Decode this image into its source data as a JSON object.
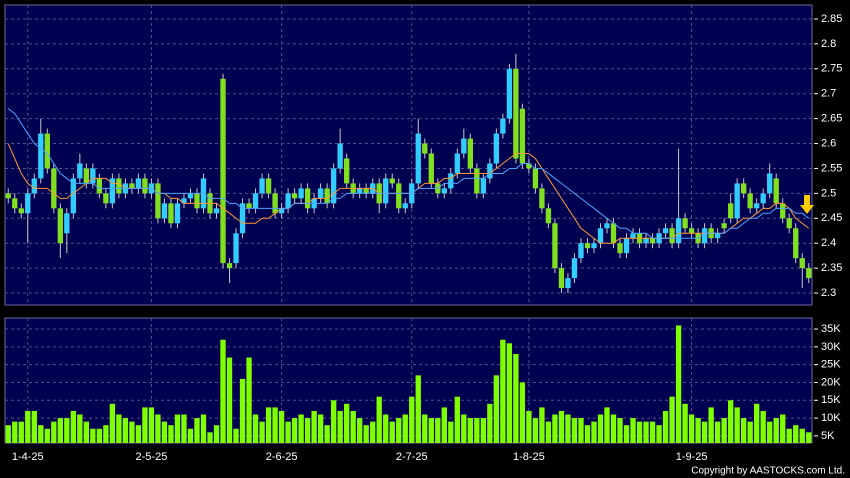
{
  "chart_data": {
    "type": "candlestick",
    "categories": [
      null,
      null,
      null,
      "1-4-25",
      null,
      null,
      null,
      null,
      null,
      null,
      null,
      null,
      null,
      null,
      null,
      null,
      null,
      null,
      null,
      null,
      null,
      null,
      "2-5-25",
      null,
      null,
      null,
      null,
      null,
      null,
      null,
      null,
      null,
      null,
      null,
      null,
      null,
      null,
      null,
      null,
      null,
      null,
      null,
      "2-6-25",
      null,
      null,
      null,
      null,
      null,
      null,
      null,
      null,
      null,
      null,
      null,
      null,
      null,
      null,
      null,
      null,
      null,
      null,
      null,
      "2-7-25",
      null,
      null,
      null,
      null,
      null,
      null,
      null,
      null,
      null,
      null,
      null,
      null,
      null,
      null,
      null,
      null,
      null,
      "1-8-25",
      null,
      null,
      null,
      null,
      null,
      null,
      null,
      null,
      null,
      null,
      null,
      null,
      null,
      null,
      null,
      null,
      null,
      null,
      null,
      null,
      null,
      null,
      null,
      null,
      "1-9-25",
      null,
      null,
      null,
      null,
      null,
      null,
      null,
      null,
      null,
      null,
      null,
      null,
      null,
      null,
      null,
      null,
      null,
      null
    ],
    "ohlc": [
      [
        2.5,
        2.51,
        2.48,
        2.49
      ],
      [
        2.49,
        2.5,
        2.46,
        2.47
      ],
      [
        2.47,
        2.48,
        2.45,
        2.46
      ],
      [
        2.46,
        2.51,
        2.4,
        2.5
      ],
      [
        2.5,
        2.54,
        2.49,
        2.53
      ],
      [
        2.53,
        2.65,
        2.52,
        2.62
      ],
      [
        2.62,
        2.63,
        2.54,
        2.55
      ],
      [
        2.55,
        2.56,
        2.46,
        2.47
      ],
      [
        2.47,
        2.48,
        2.37,
        2.4
      ],
      [
        2.42,
        2.47,
        2.38,
        2.46
      ],
      [
        2.46,
        2.54,
        2.45,
        2.53
      ],
      [
        2.53,
        2.58,
        2.52,
        2.56
      ],
      [
        2.55,
        2.56,
        2.51,
        2.52
      ],
      [
        2.52,
        2.56,
        2.51,
        2.55
      ],
      [
        2.53,
        2.54,
        2.49,
        2.5
      ],
      [
        2.5,
        2.51,
        2.47,
        2.48
      ],
      [
        2.48,
        2.54,
        2.47,
        2.53
      ],
      [
        2.53,
        2.54,
        2.49,
        2.5
      ],
      [
        2.5,
        2.53,
        2.49,
        2.52
      ],
      [
        2.52,
        2.53,
        2.5,
        2.51
      ],
      [
        2.51,
        2.54,
        2.5,
        2.53
      ],
      [
        2.53,
        2.54,
        2.49,
        2.5
      ],
      [
        2.5,
        2.53,
        2.49,
        2.52
      ],
      [
        2.52,
        2.53,
        2.44,
        2.45
      ],
      [
        2.45,
        2.49,
        2.44,
        2.48
      ],
      [
        2.48,
        2.49,
        2.43,
        2.44
      ],
      [
        2.44,
        2.49,
        2.43,
        2.48
      ],
      [
        2.48,
        2.5,
        2.47,
        2.49
      ],
      [
        2.49,
        2.51,
        2.48,
        2.5
      ],
      [
        2.5,
        2.51,
        2.46,
        2.47
      ],
      [
        2.47,
        2.54,
        2.46,
        2.53
      ],
      [
        2.5,
        2.51,
        2.45,
        2.46
      ],
      [
        2.46,
        2.48,
        2.45,
        2.47
      ],
      [
        2.73,
        2.74,
        2.35,
        2.36
      ],
      [
        2.36,
        2.37,
        2.32,
        2.35
      ],
      [
        2.36,
        2.43,
        2.35,
        2.42
      ],
      [
        2.42,
        2.49,
        2.41,
        2.48
      ],
      [
        2.48,
        2.49,
        2.46,
        2.47
      ],
      [
        2.47,
        2.51,
        2.46,
        2.5
      ],
      [
        2.5,
        2.54,
        2.49,
        2.53
      ],
      [
        2.53,
        2.54,
        2.49,
        2.5
      ],
      [
        2.5,
        2.51,
        2.45,
        2.46
      ],
      [
        2.46,
        2.48,
        2.45,
        2.47
      ],
      [
        2.47,
        2.51,
        2.46,
        2.5
      ],
      [
        2.5,
        2.51,
        2.48,
        2.49
      ],
      [
        2.49,
        2.52,
        2.48,
        2.51
      ],
      [
        2.51,
        2.52,
        2.46,
        2.47
      ],
      [
        2.47,
        2.5,
        2.46,
        2.49
      ],
      [
        2.49,
        2.52,
        2.48,
        2.51
      ],
      [
        2.51,
        2.52,
        2.47,
        2.48
      ],
      [
        2.48,
        2.56,
        2.47,
        2.55
      ],
      [
        2.55,
        2.63,
        2.54,
        2.6
      ],
      [
        2.57,
        2.58,
        2.51,
        2.52
      ],
      [
        2.52,
        2.53,
        2.49,
        2.5
      ],
      [
        2.5,
        2.52,
        2.49,
        2.51
      ],
      [
        2.51,
        2.52,
        2.49,
        2.5
      ],
      [
        2.5,
        2.53,
        2.49,
        2.52
      ],
      [
        2.52,
        2.53,
        2.46,
        2.48
      ],
      [
        2.48,
        2.54,
        2.47,
        2.53
      ],
      [
        2.53,
        2.54,
        2.51,
        2.52
      ],
      [
        2.52,
        2.53,
        2.46,
        2.47
      ],
      [
        2.47,
        2.49,
        2.46,
        2.48
      ],
      [
        2.48,
        2.53,
        2.47,
        2.52
      ],
      [
        2.52,
        2.65,
        2.51,
        2.62
      ],
      [
        2.6,
        2.61,
        2.57,
        2.58
      ],
      [
        2.58,
        2.59,
        2.51,
        2.52
      ],
      [
        2.52,
        2.53,
        2.49,
        2.5
      ],
      [
        2.5,
        2.52,
        2.49,
        2.51
      ],
      [
        2.51,
        2.55,
        2.5,
        2.54
      ],
      [
        2.54,
        2.59,
        2.53,
        2.58
      ],
      [
        2.58,
        2.63,
        2.57,
        2.61
      ],
      [
        2.61,
        2.62,
        2.54,
        2.55
      ],
      [
        2.55,
        2.56,
        2.49,
        2.5
      ],
      [
        2.5,
        2.54,
        2.49,
        2.53
      ],
      [
        2.53,
        2.57,
        2.52,
        2.56
      ],
      [
        2.56,
        2.63,
        2.55,
        2.62
      ],
      [
        2.62,
        2.66,
        2.61,
        2.65
      ],
      [
        2.65,
        2.76,
        2.64,
        2.75
      ],
      [
        2.75,
        2.78,
        2.56,
        2.57
      ],
      [
        2.67,
        2.68,
        2.55,
        2.56
      ],
      [
        2.56,
        2.57,
        2.54,
        2.55
      ],
      [
        2.55,
        2.56,
        2.5,
        2.51
      ],
      [
        2.51,
        2.52,
        2.46,
        2.47
      ],
      [
        2.47,
        2.48,
        2.43,
        2.44
      ],
      [
        2.44,
        2.45,
        2.34,
        2.35
      ],
      [
        2.35,
        2.36,
        2.3,
        2.31
      ],
      [
        2.31,
        2.34,
        2.3,
        2.33
      ],
      [
        2.33,
        2.38,
        2.32,
        2.37
      ],
      [
        2.37,
        2.41,
        2.36,
        2.4
      ],
      [
        2.4,
        2.41,
        2.38,
        2.39
      ],
      [
        2.39,
        2.41,
        2.38,
        2.4
      ],
      [
        2.4,
        2.44,
        2.39,
        2.43
      ],
      [
        2.43,
        2.45,
        2.42,
        2.44
      ],
      [
        2.44,
        2.45,
        2.39,
        2.4
      ],
      [
        2.4,
        2.41,
        2.37,
        2.38
      ],
      [
        2.38,
        2.42,
        2.37,
        2.41
      ],
      [
        2.41,
        2.43,
        2.4,
        2.42
      ],
      [
        2.42,
        2.43,
        2.39,
        2.4
      ],
      [
        2.4,
        2.42,
        2.39,
        2.41
      ],
      [
        2.41,
        2.42,
        2.39,
        2.4
      ],
      [
        2.4,
        2.43,
        2.39,
        2.42
      ],
      [
        2.42,
        2.44,
        2.41,
        2.43
      ],
      [
        2.43,
        2.44,
        2.39,
        2.4
      ],
      [
        2.4,
        2.59,
        2.39,
        2.45
      ],
      [
        2.45,
        2.46,
        2.42,
        2.43
      ],
      [
        2.43,
        2.44,
        2.41,
        2.42
      ],
      [
        2.42,
        2.43,
        2.39,
        2.4
      ],
      [
        2.4,
        2.44,
        2.39,
        2.43
      ],
      [
        2.43,
        2.44,
        2.4,
        2.41
      ],
      [
        2.41,
        2.43,
        2.4,
        2.42
      ],
      [
        2.44,
        2.45,
        2.42,
        2.43
      ],
      [
        2.48,
        2.5,
        2.44,
        2.45
      ],
      [
        2.45,
        2.53,
        2.44,
        2.52
      ],
      [
        2.52,
        2.53,
        2.49,
        2.5
      ],
      [
        2.5,
        2.51,
        2.46,
        2.47
      ],
      [
        2.47,
        2.49,
        2.46,
        2.48
      ],
      [
        2.48,
        2.51,
        2.47,
        2.5
      ],
      [
        2.5,
        2.56,
        2.49,
        2.54
      ],
      [
        2.53,
        2.54,
        2.47,
        2.48
      ],
      [
        2.48,
        2.49,
        2.44,
        2.45
      ],
      [
        2.45,
        2.46,
        2.42,
        2.43
      ],
      [
        2.43,
        2.44,
        2.36,
        2.37
      ],
      [
        2.37,
        2.38,
        2.31,
        2.35
      ],
      [
        2.35,
        2.36,
        2.32,
        2.33
      ]
    ],
    "up_color": "#33ccff",
    "down_color": "#80e020",
    "wick_color": "#c8c8c8",
    "moving_averages": [
      {
        "color": "#ff9933",
        "values": [
          2.6,
          2.57,
          2.54,
          2.52,
          2.51,
          2.51,
          2.51,
          2.5,
          2.49,
          2.49,
          2.5,
          2.51,
          2.52,
          2.53,
          2.53,
          2.53,
          2.52,
          2.52,
          2.51,
          2.51,
          2.51,
          2.51,
          2.51,
          2.5,
          2.5,
          2.49,
          2.49,
          2.48,
          2.48,
          2.48,
          2.48,
          2.48,
          2.48,
          2.47,
          2.46,
          2.45,
          2.44,
          2.44,
          2.44,
          2.45,
          2.45,
          2.46,
          2.47,
          2.47,
          2.48,
          2.48,
          2.48,
          2.49,
          2.49,
          2.49,
          2.5,
          2.51,
          2.51,
          2.51,
          2.51,
          2.51,
          2.51,
          2.5,
          2.5,
          2.5,
          2.5,
          2.5,
          2.5,
          2.51,
          2.52,
          2.52,
          2.52,
          2.53,
          2.53,
          2.54,
          2.54,
          2.54,
          2.54,
          2.54,
          2.54,
          2.55,
          2.56,
          2.57,
          2.58,
          2.58,
          2.58,
          2.57,
          2.55,
          2.53,
          2.51,
          2.49,
          2.47,
          2.45,
          2.43,
          2.42,
          2.41,
          2.4,
          2.4,
          2.4,
          2.41,
          2.41,
          2.41,
          2.41,
          2.41,
          2.41,
          2.41,
          2.41,
          2.41,
          2.42,
          2.42,
          2.42,
          2.42,
          2.42,
          2.42,
          2.42,
          2.42,
          2.43,
          2.44,
          2.45,
          2.45,
          2.46,
          2.47,
          2.47,
          2.48,
          2.48,
          2.47,
          2.45,
          2.44,
          2.43
        ]
      },
      {
        "color": "#4da6ff",
        "values": [
          2.67,
          2.66,
          2.64,
          2.62,
          2.6,
          2.59,
          2.58,
          2.56,
          2.54,
          2.53,
          2.52,
          2.52,
          2.52,
          2.52,
          2.51,
          2.51,
          2.51,
          2.51,
          2.51,
          2.51,
          2.51,
          2.51,
          2.51,
          2.5,
          2.5,
          2.5,
          2.5,
          2.5,
          2.5,
          2.5,
          2.5,
          2.49,
          2.49,
          2.49,
          2.48,
          2.48,
          2.47,
          2.47,
          2.47,
          2.47,
          2.47,
          2.47,
          2.47,
          2.47,
          2.48,
          2.48,
          2.48,
          2.48,
          2.48,
          2.48,
          2.49,
          2.49,
          2.5,
          2.5,
          2.5,
          2.5,
          2.5,
          2.5,
          2.5,
          2.5,
          2.5,
          2.5,
          2.5,
          2.51,
          2.51,
          2.51,
          2.51,
          2.52,
          2.52,
          2.52,
          2.53,
          2.53,
          2.53,
          2.53,
          2.54,
          2.54,
          2.54,
          2.55,
          2.55,
          2.56,
          2.56,
          2.55,
          2.55,
          2.54,
          2.53,
          2.52,
          2.51,
          2.5,
          2.49,
          2.48,
          2.47,
          2.46,
          2.45,
          2.44,
          2.43,
          2.43,
          2.42,
          2.42,
          2.42,
          2.41,
          2.41,
          2.41,
          2.41,
          2.41,
          2.41,
          2.41,
          2.41,
          2.42,
          2.42,
          2.42,
          2.42,
          2.43,
          2.43,
          2.44,
          2.45,
          2.45,
          2.46,
          2.46,
          2.47,
          2.47,
          2.47,
          2.46,
          2.46,
          2.45
        ]
      }
    ],
    "ylim": [
      2.276,
      2.878
    ],
    "yticks": [
      2.3,
      2.35,
      2.4,
      2.45,
      2.5,
      2.55,
      2.6,
      2.65,
      2.7,
      2.75,
      2.8,
      2.85
    ],
    "volume": {
      "color": "#80ff00",
      "values": [
        8000,
        9000,
        9000,
        12000,
        12000,
        8000,
        7000,
        9000,
        10000,
        10000,
        12000,
        11000,
        9000,
        7000,
        7000,
        8000,
        14000,
        11000,
        10000,
        9000,
        8000,
        13000,
        13000,
        11000,
        9000,
        8000,
        11000,
        11000,
        7000,
        10000,
        11000,
        6000,
        8000,
        32000,
        27000,
        7000,
        21000,
        27000,
        11000,
        9000,
        13000,
        13000,
        12000,
        9000,
        10000,
        11000,
        10000,
        12000,
        11000,
        8000,
        15000,
        12000,
        14000,
        12000,
        10000,
        8000,
        9000,
        16000,
        11000,
        9000,
        10000,
        11000,
        16000,
        22000,
        11000,
        10000,
        10000,
        13000,
        9000,
        16000,
        11000,
        10000,
        10000,
        10000,
        14000,
        22000,
        32000,
        31000,
        28000,
        20000,
        12000,
        10000,
        13000,
        9000,
        11000,
        12000,
        11000,
        10000,
        10000,
        8000,
        9000,
        11000,
        13000,
        11000,
        10000,
        8000,
        10000,
        9000,
        9000,
        9000,
        8000,
        12000,
        16000,
        36000,
        14000,
        11000,
        10000,
        9000,
        13000,
        9000,
        10000,
        15000,
        13000,
        10000,
        9000,
        14000,
        12000,
        9000,
        10000,
        11000,
        7000,
        8000,
        7000,
        6000
      ],
      "ylim": [
        3000,
        38100
      ],
      "yticks": [
        {
          "value": 5000,
          "label": "5K"
        },
        {
          "value": 10000,
          "label": "10K"
        },
        {
          "value": 15000,
          "label": "15K"
        },
        {
          "value": 20000,
          "label": "20K"
        },
        {
          "value": 25000,
          "label": "25K"
        },
        {
          "value": 30000,
          "label": "30K"
        },
        {
          "value": 35000,
          "label": "35K"
        }
      ]
    },
    "grid": true,
    "copyright": "Copyright by AASTOCKS.com Ltd."
  }
}
